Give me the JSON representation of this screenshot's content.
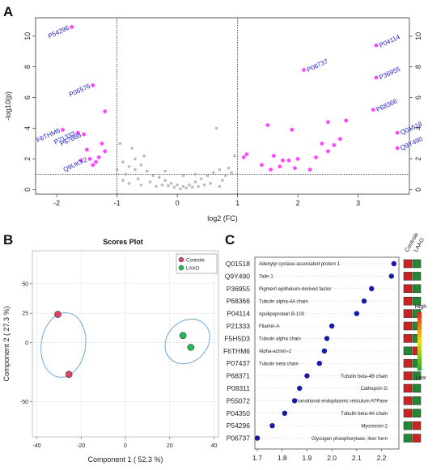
{
  "panels": {
    "a": "A",
    "b": "B",
    "c": "C"
  },
  "chart_data": [
    {
      "type": "scatter",
      "panel": "A",
      "xlabel": "log2 (FC)",
      "ylabel": "-log10(p)",
      "xlim": [
        -2.35,
        3.85
      ],
      "ylim": [
        -0.3,
        11.2
      ],
      "xticks": [
        "-2",
        "-1",
        "0",
        "1",
        "2",
        "3"
      ],
      "yticks": [
        "0",
        "2",
        "4",
        "6",
        "8",
        "10"
      ],
      "threshold_x": [
        -1,
        1
      ],
      "threshold_y": 1,
      "colors": {
        "significant": "#ff44ff",
        "nonsignificant": "#aaaaaa",
        "label": "#2222cc"
      },
      "significant_points": [
        [
          -1.75,
          10.6
        ],
        [
          -1.4,
          6.8
        ],
        [
          -1.2,
          5.1
        ],
        [
          -1.9,
          3.9
        ],
        [
          -1.55,
          3.6
        ],
        [
          -1.65,
          3.7
        ],
        [
          -1.5,
          2.6
        ],
        [
          -1.45,
          2.0
        ],
        [
          -1.35,
          1.8
        ],
        [
          -1.3,
          2.1
        ],
        [
          -1.6,
          1.9
        ],
        [
          -1.25,
          3.0
        ],
        [
          -1.2,
          2.5
        ],
        [
          -1.4,
          1.6
        ],
        [
          2.1,
          7.8
        ],
        [
          3.3,
          9.4
        ],
        [
          3.3,
          7.3
        ],
        [
          3.25,
          5.2
        ],
        [
          3.65,
          3.7
        ],
        [
          3.65,
          2.7
        ],
        [
          1.5,
          4.2
        ],
        [
          1.9,
          3.9
        ],
        [
          2.5,
          4.4
        ],
        [
          2.8,
          4.5
        ],
        [
          2.7,
          3.3
        ],
        [
          2.6,
          2.9
        ],
        [
          2.5,
          2.5
        ],
        [
          2.3,
          2.1
        ],
        [
          2.0,
          2.0
        ],
        [
          1.85,
          1.9
        ],
        [
          1.6,
          2.2
        ],
        [
          1.7,
          1.5
        ],
        [
          1.55,
          1.3
        ],
        [
          1.75,
          1.9
        ],
        [
          2.4,
          3.0
        ],
        [
          2.2,
          1.3
        ],
        [
          1.95,
          1.4
        ],
        [
          1.1,
          2.1
        ],
        [
          1.15,
          2.3
        ],
        [
          1.4,
          1.6
        ]
      ],
      "nonsignificant_points": [
        [
          -0.9,
          1.8
        ],
        [
          -0.8,
          1.5
        ],
        [
          -0.7,
          1.3
        ],
        [
          -0.6,
          1.6
        ],
        [
          -0.5,
          1.2
        ],
        [
          -0.4,
          0.9
        ],
        [
          -0.3,
          0.8
        ],
        [
          -0.2,
          0.6
        ],
        [
          -0.1,
          0.4
        ],
        [
          0.0,
          0.3
        ],
        [
          0.1,
          0.2
        ],
        [
          0.2,
          0.3
        ],
        [
          0.3,
          0.5
        ],
        [
          0.4,
          0.7
        ],
        [
          0.5,
          0.9
        ],
        [
          0.6,
          1.1
        ],
        [
          0.7,
          1.3
        ],
        [
          0.8,
          0.9
        ],
        [
          0.9,
          1.1
        ],
        [
          -0.95,
          3.0
        ],
        [
          -0.75,
          2.7
        ],
        [
          -0.55,
          2.2
        ],
        [
          -0.85,
          1.0
        ],
        [
          -0.65,
          0.7
        ],
        [
          -0.45,
          0.5
        ],
        [
          -0.25,
          0.3
        ],
        [
          -0.05,
          0.15
        ],
        [
          0.15,
          0.1
        ],
        [
          0.35,
          0.2
        ],
        [
          0.55,
          0.4
        ],
        [
          0.75,
          0.6
        ],
        [
          0.85,
          1.4
        ],
        [
          0.65,
          4.0
        ],
        [
          0.95,
          2.2
        ],
        [
          -1.0,
          1.3
        ],
        [
          -0.9,
          0.6
        ],
        [
          -0.8,
          0.4
        ],
        [
          -0.6,
          0.3
        ],
        [
          -0.35,
          0.2
        ],
        [
          0.05,
          0.05
        ],
        [
          0.25,
          0.15
        ],
        [
          0.45,
          0.3
        ],
        [
          -0.15,
          0.25
        ],
        [
          0.7,
          0.2
        ],
        [
          -0.7,
          2.0
        ],
        [
          0.3,
          1.0
        ],
        [
          -0.2,
          1.2
        ],
        [
          0.1,
          0.9
        ]
      ],
      "labels": [
        {
          "text": "P54296",
          "x": -1.75,
          "y": 10.6,
          "side": "left"
        },
        {
          "text": "P06576",
          "x": -1.4,
          "y": 6.8,
          "side": "left"
        },
        {
          "text": "P21333",
          "x": -1.65,
          "y": 3.7,
          "side": "left"
        },
        {
          "text": "P67888",
          "x": -1.55,
          "y": 3.6,
          "side": "left"
        },
        {
          "text": "F6THM6",
          "x": -1.9,
          "y": 3.9,
          "side": "left"
        },
        {
          "text": "Q9UKX2",
          "x": -1.45,
          "y": 2.0,
          "side": "left"
        },
        {
          "text": "P06737",
          "x": 2.1,
          "y": 7.8,
          "side": "right"
        },
        {
          "text": "P04114",
          "x": 3.3,
          "y": 9.4,
          "side": "right"
        },
        {
          "text": "P36955",
          "x": 3.3,
          "y": 7.3,
          "side": "right"
        },
        {
          "text": "P68366",
          "x": 3.25,
          "y": 5.2,
          "side": "right"
        },
        {
          "text": "Q01518",
          "x": 3.65,
          "y": 3.7,
          "side": "right"
        },
        {
          "text": "Q9Y490",
          "x": 3.65,
          "y": 2.7,
          "side": "right"
        }
      ]
    },
    {
      "type": "scatter",
      "panel": "B",
      "title": "Scores Plot",
      "xlabel": "Component 1 ( 52.3 %)",
      "ylabel": "Component 2 ( 27.3 %)",
      "xlim": [
        -42,
        42
      ],
      "ylim": [
        -80,
        78
      ],
      "xticks": [
        "-40",
        "-20",
        "0",
        "20",
        "40"
      ],
      "yticks": [
        "-50",
        "0",
        "25",
        "50"
      ],
      "series": [
        {
          "name": "Controle",
          "color": "#dd4466",
          "points": [
            [
              -30.5,
              24
            ],
            [
              -25.5,
              -27
            ]
          ]
        },
        {
          "name": "LAAO",
          "color": "#22bb55",
          "points": [
            [
              26,
              6
            ],
            [
              29.5,
              -4
            ]
          ]
        }
      ],
      "ellipses": [
        {
          "cx": -28,
          "cy": -2,
          "rx": 10,
          "ry": 50,
          "angle": 8
        },
        {
          "cx": 28,
          "cy": 1,
          "rx": 11,
          "ry": 31,
          "angle": -45
        }
      ],
      "legend": [
        "Controle",
        "LAAO"
      ],
      "legend_position": "top-right"
    },
    {
      "type": "scatter",
      "panel": "C",
      "x_ticks": [
        "1.7",
        "1.8",
        "1.9",
        "2.0",
        "2.1",
        "2.2"
      ],
      "xlim": [
        1.69,
        2.27
      ],
      "rows": [
        {
          "acc": "Q01518",
          "name": "Adenylyl cyclase-associated protein 1",
          "value": 2.25,
          "heat": [
            "#cc2222",
            "#228833"
          ]
        },
        {
          "acc": "Q9Y490",
          "name": "Talin-1",
          "value": 2.24,
          "heat": [
            "#cc2222",
            "#228833"
          ]
        },
        {
          "acc": "P36955",
          "name": "Pigment epithelium-derived factor",
          "value": 2.16,
          "heat": [
            "#cc2222",
            "#228833"
          ]
        },
        {
          "acc": "P68366",
          "name": "Tubulin alpha-4A chain",
          "value": 2.13,
          "heat": [
            "#cc2222",
            "#228833"
          ]
        },
        {
          "acc": "P04114",
          "name": "Apolipoprotein B-100",
          "value": 2.1,
          "heat": [
            "#cc2222",
            "#228833"
          ]
        },
        {
          "acc": "P21333",
          "name": "Filamin-A",
          "value": 2.0,
          "heat": [
            "#cc2222",
            "#228833"
          ]
        },
        {
          "acc": "F5H5D3",
          "name": "Tubulin alpha chain",
          "value": 1.98,
          "heat": [
            "#cc2222",
            "#228833"
          ]
        },
        {
          "acc": "F6THM6",
          "name": "Alpha-actinin-2",
          "value": 1.97,
          "heat": [
            "#228833",
            "#cc2222"
          ]
        },
        {
          "acc": "P07437",
          "name": "Tubulin beta chain",
          "value": 1.95,
          "heat": [
            "#cc2222",
            "#228833"
          ]
        },
        {
          "acc": "P68371",
          "name": "Tubulin beta-4B chain",
          "value": 1.9,
          "heat": [
            "#cc2222",
            "#228833"
          ]
        },
        {
          "acc": "P08311",
          "name": "Cathepsin G",
          "value": 1.87,
          "heat": [
            "#cc2222",
            "#228833"
          ]
        },
        {
          "acc": "P55072",
          "name": "Transitional endoplasmic reticulum ATPase",
          "value": 1.85,
          "heat": [
            "#cc2222",
            "#228833"
          ]
        },
        {
          "acc": "P04350",
          "name": "Tubulin beta-4A chain",
          "value": 1.81,
          "heat": [
            "#cc2222",
            "#228833"
          ]
        },
        {
          "acc": "P54296",
          "name": "Myomesin-2",
          "value": 1.76,
          "heat": [
            "#228833",
            "#cc2222"
          ]
        },
        {
          "acc": "P06737",
          "name": "Glycogen phosphorylase, liver form",
          "value": 1.7,
          "heat": [
            "#228833",
            "#cc2222"
          ]
        }
      ],
      "heat_columns": [
        "Controle",
        "LAAO"
      ],
      "colorbar": {
        "high": "High",
        "low": "Low",
        "colors": [
          "#dd2222",
          "#f0e020",
          "#22aa33"
        ]
      },
      "dot_color": "#1a1aaa"
    }
  ]
}
